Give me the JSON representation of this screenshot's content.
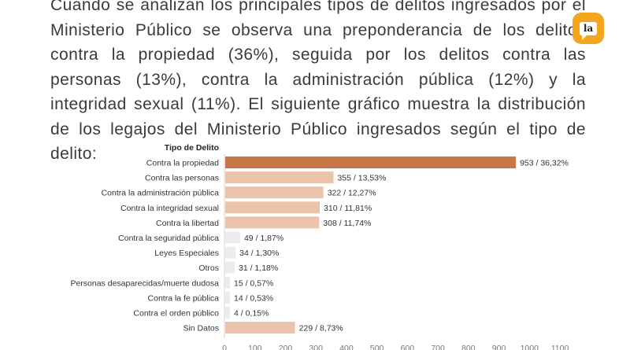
{
  "article": {
    "paragraph": "Cuando se analizan los principales tipos de delitos ingresados por el Ministerio Público se observa una preponderancia de los delitos contra la propiedad (36%), seguida por los delitos contra las personas (13%), contra la administración pública (12%) y la integridad sexual (11%). El siguiente gráfico muestra la distribución de los legajos del Ministerio Público ingresados según el tipo de delito:"
  },
  "badge": {
    "text": "la",
    "color": "#f3a51e"
  },
  "chart_data": {
    "type": "bar",
    "orientation": "horizontal",
    "category_header": "Tipo de Delito",
    "categories": [
      "Contra la propiedad",
      "Contra las personas",
      "Contra la administración pública",
      "Contra la integridad sexual",
      "Contra la libertad",
      "Contra la seguridad pública",
      "Leyes Especiales",
      "Otros",
      "Personas desaparecidas/muerte dudosa",
      "Contra la fe pública",
      "Contra el orden público",
      "Sin Datos"
    ],
    "values": [
      953,
      355,
      322,
      310,
      308,
      49,
      34,
      31,
      15,
      14,
      4,
      229
    ],
    "data_labels": [
      "953 / 36,32%",
      "355 / 13,53%",
      "322 / 12,27%",
      "310 / 11,81%",
      "308 / 11,74%",
      "49 / 1,87%",
      "34 / 1,30%",
      "31 / 1,18%",
      "15 / 0,57%",
      "14 / 0,53%",
      "4 / 0,15%",
      "229 / 8,73%"
    ],
    "highlight_color": "#c8764a",
    "bar_color": "#ebc3ab",
    "small_bar_color": "#ececec",
    "xlim": [
      0,
      1100
    ],
    "xticks": [
      0,
      100,
      200,
      300,
      400,
      500,
      600,
      700,
      800,
      900,
      1000,
      1100
    ]
  }
}
